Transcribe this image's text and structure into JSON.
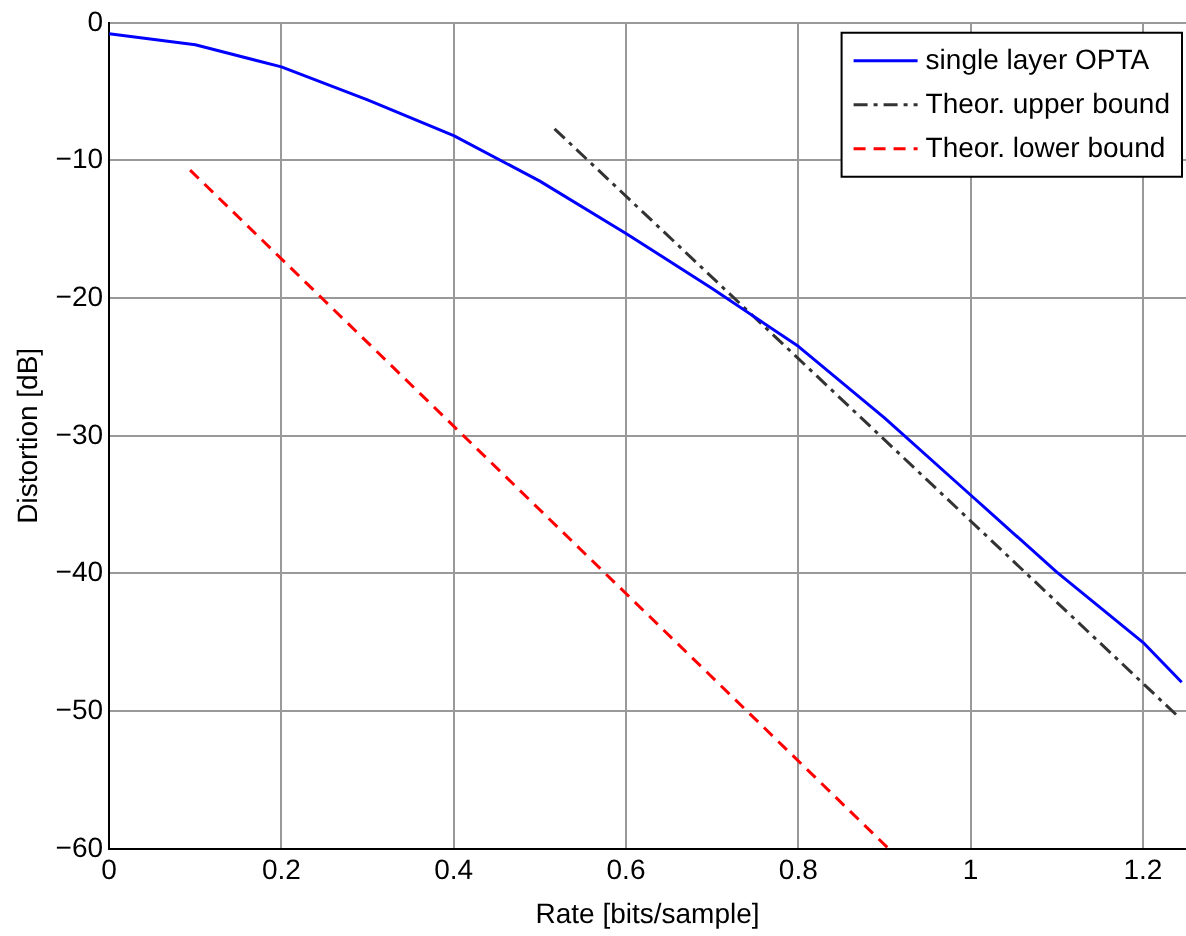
{
  "chart_data": {
    "type": "line",
    "xlabel": "Rate [bits/sample]",
    "ylabel": "Distortion [dB]",
    "xlim": [
      0,
      1.25
    ],
    "ylim": [
      -60,
      0
    ],
    "xticks": [
      0,
      0.2,
      0.4,
      0.6,
      0.8,
      1,
      1.2
    ],
    "yticks": [
      -60,
      -50,
      -40,
      -30,
      -20,
      -10,
      0
    ],
    "grid": true,
    "legend": "top right",
    "series": [
      {
        "name": "single layer OPTA",
        "color": "#0000ff",
        "line_style": "solid",
        "x": [
          0,
          0.1,
          0.2,
          0.3,
          0.4,
          0.5,
          0.6,
          0.7,
          0.8,
          0.9,
          1,
          1.1,
          1.2,
          1.245
        ],
        "values": [
          -0.8,
          -1.6,
          -3.2,
          -5.6,
          -8.2,
          -11.5,
          -15.3,
          -19.3,
          -23.5,
          -28.7,
          -34.3,
          -39.9,
          -45,
          -47.9
        ]
      },
      {
        "name": "Theor. upper bound",
        "color": "#333333",
        "line_style": "dashdot",
        "x": [
          0.517,
          1.241
        ],
        "values": [
          -7.7,
          -50.4
        ]
      },
      {
        "name": "Theor. lower bound",
        "color": "#ff0000",
        "line_style": "dashed",
        "x": [
          0.094,
          0.905
        ],
        "values": [
          -10.7,
          -60
        ]
      }
    ]
  }
}
